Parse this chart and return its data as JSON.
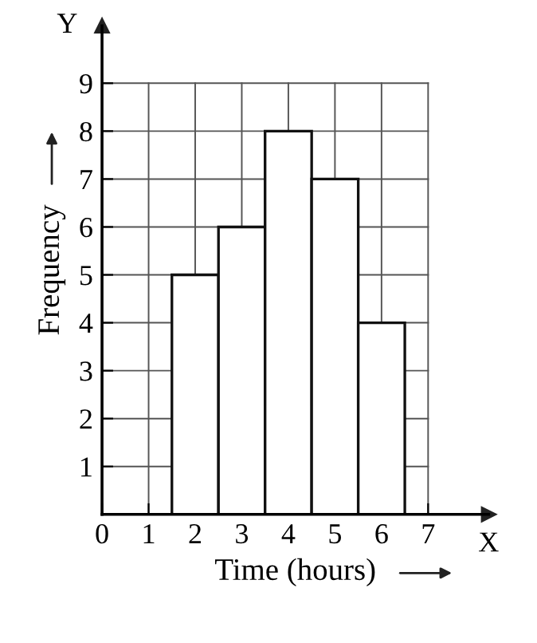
{
  "chart_data": {
    "type": "histogram",
    "xlabel": "Time (hours)",
    "ylabel": "Frequency",
    "bins": [
      1.5,
      2.5,
      3.5,
      4.5,
      5.5,
      6.5
    ],
    "values": [
      5,
      6,
      8,
      7,
      4
    ],
    "color": "#ffffff",
    "xlim": [
      0,
      8.3
    ],
    "ylim": [
      0,
      10.2
    ],
    "xticks": [
      0,
      1,
      2,
      3,
      4,
      5,
      6,
      7
    ],
    "yticks": [
      {
        "value": 0,
        "label": null
      },
      1,
      2,
      3,
      4,
      5,
      6,
      7,
      8,
      9
    ],
    "grid": true,
    "annotations": [
      "X",
      "Y"
    ]
  }
}
